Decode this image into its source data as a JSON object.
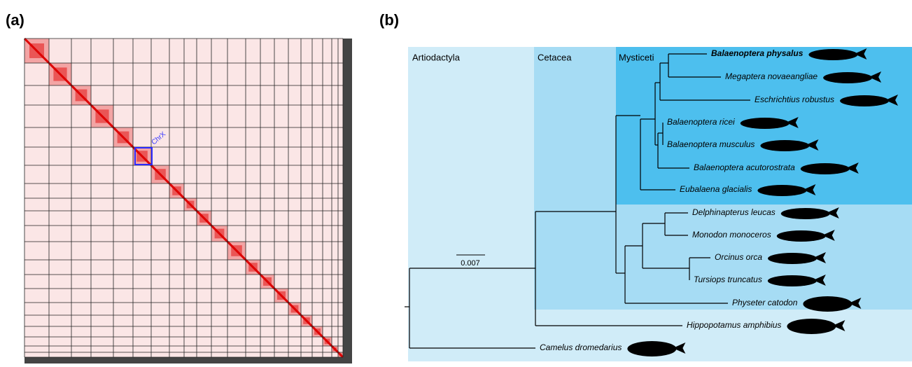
{
  "panel_a": {
    "label": "(a)",
    "annotation": "ChrX"
  },
  "panel_b": {
    "label": "(b)",
    "clades": [
      "Artiodactyla",
      "Cetacea",
      "Mysticeti"
    ],
    "taxa": [
      "Balaenoptera physalus",
      "Megaptera novaeangliae",
      "Eschrichtius robustus",
      "Balaenoptera ricei",
      "Balaenoptera musculus",
      "Balaenoptera acutorostrata",
      "Eubalaena glacialis",
      "Delphinapterus leucas",
      "Monodon monoceros",
      "Orcinus orca",
      "Tursiops truncatus",
      "Physeter catodon",
      "Hippopotamus amphibius",
      "Camelus dromedarius"
    ],
    "scale_bar": "0.007"
  }
}
